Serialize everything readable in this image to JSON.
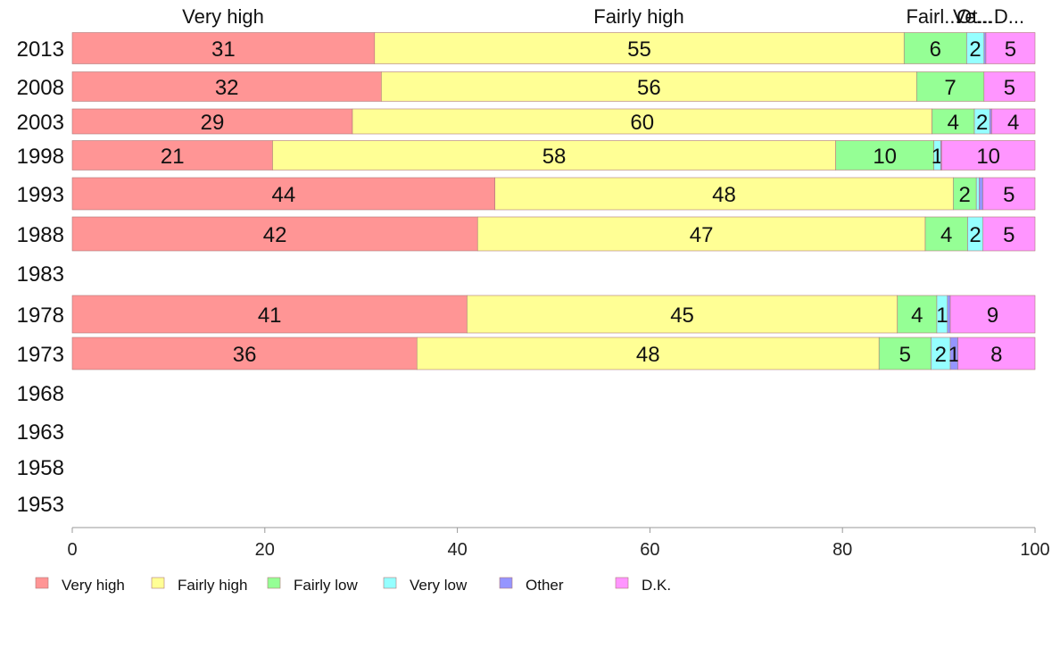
{
  "chart_data": {
    "type": "bar",
    "orientation": "horizontal",
    "stacked": true,
    "xlim": [
      0,
      100
    ],
    "x_ticks": [
      "0",
      "20",
      "40",
      "60",
      "80",
      "100"
    ],
    "grid": false,
    "legend_position": "bottom",
    "top_labels": [
      "Very high",
      "Fairly high",
      "Fairl...",
      "Ve...",
      "Ot...",
      "D..."
    ],
    "categories": [
      "2013",
      "2008",
      "2003",
      "1998",
      "1993",
      "1988",
      "1983",
      "1978",
      "1973",
      "1968",
      "1963",
      "1958",
      "1953"
    ],
    "series": [
      {
        "name": "Very high",
        "color": "#ff9595",
        "values": [
          31.4,
          32.1,
          29.1,
          20.8,
          43.9,
          42.1,
          null,
          41.0,
          35.8,
          null,
          null,
          null,
          null
        ],
        "labels": [
          "31",
          "32",
          "29",
          "21",
          "44",
          "42",
          "",
          "41",
          "36",
          "",
          "",
          "",
          ""
        ]
      },
      {
        "name": "Fairly high",
        "color": "#ffff95",
        "values": [
          55.0,
          55.6,
          60.2,
          58.5,
          47.6,
          46.5,
          null,
          44.7,
          48.0,
          null,
          null,
          null,
          null
        ],
        "labels": [
          "55",
          "56",
          "60",
          "58",
          "48",
          "47",
          "",
          "45",
          "48",
          "",
          "",
          "",
          ""
        ]
      },
      {
        "name": "Fairly low",
        "color": "#95ff95",
        "values": [
          6.5,
          7.0,
          4.4,
          10.2,
          2.4,
          4.4,
          null,
          4.1,
          5.4,
          null,
          null,
          null,
          null
        ],
        "labels": [
          "6",
          "7",
          "4",
          "10",
          "2",
          "4",
          "",
          "4",
          "5",
          "",
          "",
          "",
          ""
        ]
      },
      {
        "name": "Very low",
        "color": "#95ffff",
        "values": [
          1.8,
          0.0,
          1.6,
          0.7,
          0.3,
          1.6,
          null,
          1.1,
          2.0,
          null,
          null,
          null,
          null
        ],
        "labels": [
          "2",
          "",
          "2",
          "1",
          "",
          "2",
          "",
          "1",
          "2",
          "",
          "",
          "",
          ""
        ]
      },
      {
        "name": "Other",
        "color": "#9595ff",
        "values": [
          0.2,
          0.0,
          0.2,
          0.1,
          0.4,
          0.0,
          null,
          0.3,
          0.8,
          null,
          null,
          null,
          null
        ],
        "labels": [
          "",
          "",
          "",
          "",
          "",
          "",
          "",
          "",
          "1",
          "",
          "",
          "",
          ""
        ]
      },
      {
        "name": "D.K.",
        "color": "#ff95ff",
        "values": [
          5.1,
          5.3,
          4.5,
          9.7,
          5.4,
          5.4,
          null,
          8.8,
          8.0,
          null,
          null,
          null,
          null
        ],
        "labels": [
          "5",
          "5",
          "4",
          "10",
          "5",
          "5",
          "",
          "9",
          "8",
          "",
          "",
          "",
          ""
        ]
      }
    ]
  }
}
